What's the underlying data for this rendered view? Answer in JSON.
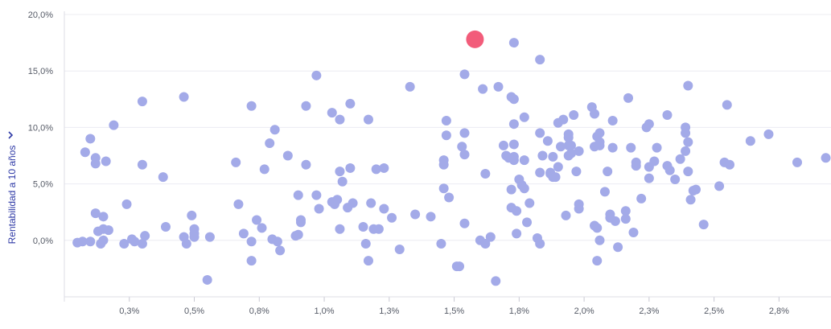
{
  "chart_data": {
    "type": "scatter",
    "ylabel": "Rentabilidad a 10 años",
    "y_ticks": [
      "20,0%",
      "15,0%",
      "10,0%",
      "5,0%",
      "0,0%"
    ],
    "y_tick_values": [
      20,
      15,
      10,
      5,
      0
    ],
    "x_ticks": [
      "0,3%",
      "0,5%",
      "0,8%",
      "1,0%",
      "1,3%",
      "1,5%",
      "1,8%",
      "2,0%",
      "2,3%",
      "2,5%",
      "2,8%"
    ],
    "x_tick_values": [
      0.25,
      0.5,
      0.75,
      1.0,
      1.25,
      1.5,
      1.75,
      2.0,
      2.25,
      2.5,
      2.75
    ],
    "xlim": [
      0.0,
      2.95
    ],
    "ylim": [
      -5.0,
      20.0
    ],
    "grid": true,
    "colors": {
      "points": "#a3aae8",
      "highlight": "#f25c7a",
      "axis_label": "#2f3aa6"
    },
    "highlight": {
      "x": 1.58,
      "y": 17.8
    },
    "points": [
      [
        0.05,
        -0.2
      ],
      [
        0.07,
        -0.1
      ],
      [
        0.08,
        7.8
      ],
      [
        0.1,
        -0.1
      ],
      [
        0.1,
        9.0
      ],
      [
        0.12,
        7.3
      ],
      [
        0.12,
        6.8
      ],
      [
        0.12,
        2.4
      ],
      [
        0.13,
        0.8
      ],
      [
        0.14,
        -0.3
      ],
      [
        0.15,
        2.1
      ],
      [
        0.15,
        0.0
      ],
      [
        0.15,
        1.0
      ],
      [
        0.16,
        7.0
      ],
      [
        0.17,
        0.9
      ],
      [
        0.19,
        10.2
      ],
      [
        0.23,
        -0.3
      ],
      [
        0.24,
        3.2
      ],
      [
        0.26,
        0.1
      ],
      [
        0.27,
        -0.1
      ],
      [
        0.3,
        12.3
      ],
      [
        0.3,
        6.7
      ],
      [
        0.3,
        -0.3
      ],
      [
        0.31,
        0.4
      ],
      [
        0.38,
        5.6
      ],
      [
        0.39,
        1.2
      ],
      [
        0.46,
        12.7
      ],
      [
        0.46,
        0.3
      ],
      [
        0.47,
        -0.3
      ],
      [
        0.49,
        2.2
      ],
      [
        0.5,
        1.0
      ],
      [
        0.5,
        0.6
      ],
      [
        0.5,
        0.3
      ],
      [
        0.55,
        -3.5
      ],
      [
        0.56,
        0.3
      ],
      [
        0.66,
        6.9
      ],
      [
        0.67,
        3.2
      ],
      [
        0.69,
        0.6
      ],
      [
        0.72,
        11.9
      ],
      [
        0.72,
        -0.1
      ],
      [
        0.72,
        -1.8
      ],
      [
        0.74,
        1.8
      ],
      [
        0.76,
        1.1
      ],
      [
        0.77,
        6.3
      ],
      [
        0.79,
        8.6
      ],
      [
        0.8,
        0.1
      ],
      [
        0.81,
        9.8
      ],
      [
        0.82,
        -0.1
      ],
      [
        0.83,
        -0.9
      ],
      [
        0.86,
        7.5
      ],
      [
        0.89,
        0.4
      ],
      [
        0.9,
        4.0
      ],
      [
        0.9,
        0.5
      ],
      [
        0.91,
        1.8
      ],
      [
        0.91,
        1.6
      ],
      [
        0.93,
        11.9
      ],
      [
        0.93,
        6.7
      ],
      [
        0.97,
        14.6
      ],
      [
        0.97,
        4.0
      ],
      [
        0.98,
        2.8
      ],
      [
        1.03,
        11.3
      ],
      [
        1.03,
        3.4
      ],
      [
        1.04,
        3.2
      ],
      [
        1.05,
        3.6
      ],
      [
        1.06,
        10.7
      ],
      [
        1.06,
        6.1
      ],
      [
        1.06,
        1.0
      ],
      [
        1.07,
        5.2
      ],
      [
        1.09,
        2.9
      ],
      [
        1.1,
        12.1
      ],
      [
        1.1,
        6.4
      ],
      [
        1.11,
        3.3
      ],
      [
        1.15,
        1.2
      ],
      [
        1.16,
        -0.3
      ],
      [
        1.17,
        10.7
      ],
      [
        1.17,
        -1.8
      ],
      [
        1.18,
        3.3
      ],
      [
        1.19,
        1.0
      ],
      [
        1.2,
        6.3
      ],
      [
        1.21,
        1.0
      ],
      [
        1.23,
        6.4
      ],
      [
        1.23,
        2.8
      ],
      [
        1.26,
        2.0
      ],
      [
        1.29,
        -0.8
      ],
      [
        1.33,
        13.6
      ],
      [
        1.35,
        2.3
      ],
      [
        1.41,
        2.1
      ],
      [
        1.45,
        -0.3
      ],
      [
        1.46,
        7.1
      ],
      [
        1.46,
        6.7
      ],
      [
        1.46,
        4.6
      ],
      [
        1.47,
        10.6
      ],
      [
        1.47,
        9.3
      ],
      [
        1.48,
        3.8
      ],
      [
        1.51,
        -2.3
      ],
      [
        1.52,
        -2.3
      ],
      [
        1.53,
        8.3
      ],
      [
        1.54,
        14.7
      ],
      [
        1.54,
        9.5
      ],
      [
        1.54,
        7.6
      ],
      [
        1.54,
        1.5
      ],
      [
        1.6,
        0.0
      ],
      [
        1.61,
        13.4
      ],
      [
        1.62,
        5.9
      ],
      [
        1.62,
        -0.3
      ],
      [
        1.64,
        0.3
      ],
      [
        1.66,
        -3.6
      ],
      [
        1.67,
        13.6
      ],
      [
        1.69,
        8.4
      ],
      [
        1.7,
        7.5
      ],
      [
        1.71,
        7.3
      ],
      [
        1.72,
        12.7
      ],
      [
        1.72,
        4.5
      ],
      [
        1.72,
        2.9
      ],
      [
        1.73,
        17.5
      ],
      [
        1.73,
        12.5
      ],
      [
        1.73,
        10.3
      ],
      [
        1.73,
        8.5
      ],
      [
        1.73,
        7.4
      ],
      [
        1.73,
        7.1
      ],
      [
        1.74,
        2.6
      ],
      [
        1.74,
        0.6
      ],
      [
        1.75,
        5.4
      ],
      [
        1.76,
        4.9
      ],
      [
        1.77,
        10.9
      ],
      [
        1.77,
        7.1
      ],
      [
        1.77,
        4.6
      ],
      [
        1.78,
        1.6
      ],
      [
        1.79,
        3.3
      ],
      [
        1.82,
        0.2
      ],
      [
        1.83,
        16.0
      ],
      [
        1.83,
        9.5
      ],
      [
        1.83,
        6.0
      ],
      [
        1.83,
        -0.3
      ],
      [
        1.84,
        7.5
      ],
      [
        1.86,
        8.8
      ],
      [
        1.87,
        6.0
      ],
      [
        1.87,
        5.9
      ],
      [
        1.88,
        5.6
      ],
      [
        1.88,
        7.4
      ],
      [
        1.89,
        5.6
      ],
      [
        1.9,
        10.4
      ],
      [
        1.9,
        6.5
      ],
      [
        1.91,
        8.3
      ],
      [
        1.92,
        10.7
      ],
      [
        1.93,
        2.2
      ],
      [
        1.94,
        9.4
      ],
      [
        1.94,
        9.1
      ],
      [
        1.94,
        8.4
      ],
      [
        1.94,
        7.5
      ],
      [
        1.95,
        7.7
      ],
      [
        1.95,
        8.4
      ],
      [
        1.96,
        11.1
      ],
      [
        1.97,
        6.1
      ],
      [
        1.98,
        7.9
      ],
      [
        1.98,
        3.2
      ],
      [
        1.98,
        2.8
      ],
      [
        2.03,
        11.8
      ],
      [
        2.04,
        11.2
      ],
      [
        2.04,
        8.3
      ],
      [
        2.04,
        1.3
      ],
      [
        2.05,
        -1.8
      ],
      [
        2.05,
        9.2
      ],
      [
        2.05,
        1.1
      ],
      [
        2.06,
        9.5
      ],
      [
        2.06,
        8.7
      ],
      [
        2.06,
        8.4
      ],
      [
        2.06,
        0.0
      ],
      [
        2.08,
        4.3
      ],
      [
        2.09,
        6.1
      ],
      [
        2.1,
        2.3
      ],
      [
        2.1,
        2.0
      ],
      [
        2.11,
        10.6
      ],
      [
        2.11,
        8.2
      ],
      [
        2.12,
        1.7
      ],
      [
        2.13,
        -0.6
      ],
      [
        2.16,
        2.6
      ],
      [
        2.16,
        1.9
      ],
      [
        2.17,
        12.6
      ],
      [
        2.18,
        8.2
      ],
      [
        2.19,
        0.7
      ],
      [
        2.2,
        6.9
      ],
      [
        2.2,
        6.6
      ],
      [
        2.22,
        3.7
      ],
      [
        2.24,
        10.0
      ],
      [
        2.25,
        10.3
      ],
      [
        2.25,
        6.5
      ],
      [
        2.25,
        5.5
      ],
      [
        2.27,
        7.0
      ],
      [
        2.28,
        8.2
      ],
      [
        2.32,
        11.1
      ],
      [
        2.32,
        6.6
      ],
      [
        2.33,
        6.2
      ],
      [
        2.35,
        5.4
      ],
      [
        2.37,
        7.2
      ],
      [
        2.39,
        10.0
      ],
      [
        2.39,
        9.5
      ],
      [
        2.39,
        7.9
      ],
      [
        2.4,
        13.7
      ],
      [
        2.4,
        8.7
      ],
      [
        2.4,
        6.1
      ],
      [
        2.41,
        3.6
      ],
      [
        2.42,
        4.4
      ],
      [
        2.43,
        4.5
      ],
      [
        2.46,
        1.4
      ],
      [
        2.52,
        4.8
      ],
      [
        2.54,
        6.9
      ],
      [
        2.55,
        12.0
      ],
      [
        2.56,
        6.7
      ],
      [
        2.64,
        8.8
      ],
      [
        2.71,
        9.4
      ],
      [
        2.82,
        6.9
      ],
      [
        2.93,
        7.3
      ]
    ]
  }
}
